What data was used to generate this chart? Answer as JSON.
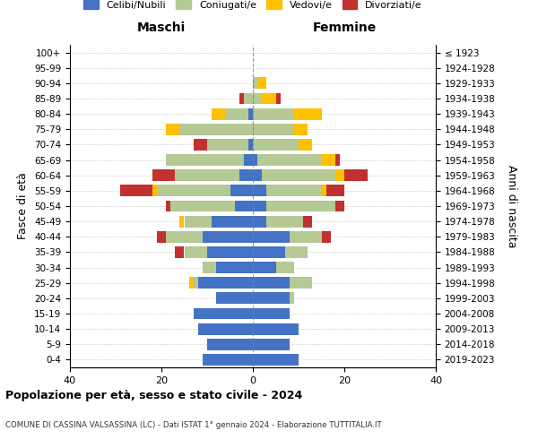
{
  "age_groups": [
    "0-4",
    "5-9",
    "10-14",
    "15-19",
    "20-24",
    "25-29",
    "30-34",
    "35-39",
    "40-44",
    "45-49",
    "50-54",
    "55-59",
    "60-64",
    "65-69",
    "70-74",
    "75-79",
    "80-84",
    "85-89",
    "90-94",
    "95-99",
    "100+"
  ],
  "birth_years": [
    "2019-2023",
    "2014-2018",
    "2009-2013",
    "2004-2008",
    "1999-2003",
    "1994-1998",
    "1989-1993",
    "1984-1988",
    "1979-1983",
    "1974-1978",
    "1969-1973",
    "1964-1968",
    "1959-1963",
    "1954-1958",
    "1949-1953",
    "1944-1948",
    "1939-1943",
    "1934-1938",
    "1929-1933",
    "1924-1928",
    "≤ 1923"
  ],
  "males": {
    "celibi": [
      11,
      10,
      12,
      13,
      8,
      12,
      8,
      10,
      11,
      9,
      4,
      5,
      3,
      2,
      1,
      0,
      1,
      0,
      0,
      0,
      0
    ],
    "coniugati": [
      0,
      0,
      0,
      0,
      0,
      1,
      3,
      5,
      8,
      6,
      14,
      16,
      14,
      17,
      9,
      16,
      5,
      2,
      0,
      0,
      0
    ],
    "vedovi": [
      0,
      0,
      0,
      0,
      0,
      1,
      0,
      0,
      0,
      1,
      0,
      1,
      0,
      0,
      0,
      3,
      3,
      0,
      0,
      0,
      0
    ],
    "divorziati": [
      0,
      0,
      0,
      0,
      0,
      0,
      0,
      2,
      2,
      0,
      1,
      7,
      5,
      0,
      3,
      0,
      0,
      1,
      0,
      0,
      0
    ]
  },
  "females": {
    "nubili": [
      10,
      8,
      10,
      8,
      8,
      8,
      5,
      7,
      8,
      3,
      3,
      3,
      2,
      1,
      0,
      0,
      0,
      0,
      0,
      0,
      0
    ],
    "coniugate": [
      0,
      0,
      0,
      0,
      1,
      5,
      4,
      5,
      7,
      8,
      15,
      12,
      16,
      14,
      10,
      9,
      9,
      2,
      1,
      0,
      0
    ],
    "vedove": [
      0,
      0,
      0,
      0,
      0,
      0,
      0,
      0,
      0,
      0,
      0,
      1,
      2,
      3,
      3,
      3,
      6,
      3,
      2,
      0,
      0
    ],
    "divorziate": [
      0,
      0,
      0,
      0,
      0,
      0,
      0,
      0,
      2,
      2,
      2,
      4,
      5,
      1,
      0,
      0,
      0,
      1,
      0,
      0,
      0
    ]
  },
  "colors": {
    "celibi": "#4472c4",
    "coniugati": "#b5c994",
    "vedovi": "#ffc000",
    "divorziati": "#c0312f"
  },
  "xlim": 40,
  "title_main": "Popolazione per età, sesso e stato civile - 2024",
  "title_sub": "COMUNE DI CASSINA VALSASSINA (LC) - Dati ISTAT 1° gennaio 2024 - Elaborazione TUTTITALIA.IT",
  "legend_labels": [
    "Celibi/Nubili",
    "Coniugati/e",
    "Vedovi/e",
    "Divorziati/e"
  ],
  "ylabel_left": "Fasce di età",
  "ylabel_right": "Anni di nascita",
  "maschi_label": "Maschi",
  "femmine_label": "Femmine"
}
